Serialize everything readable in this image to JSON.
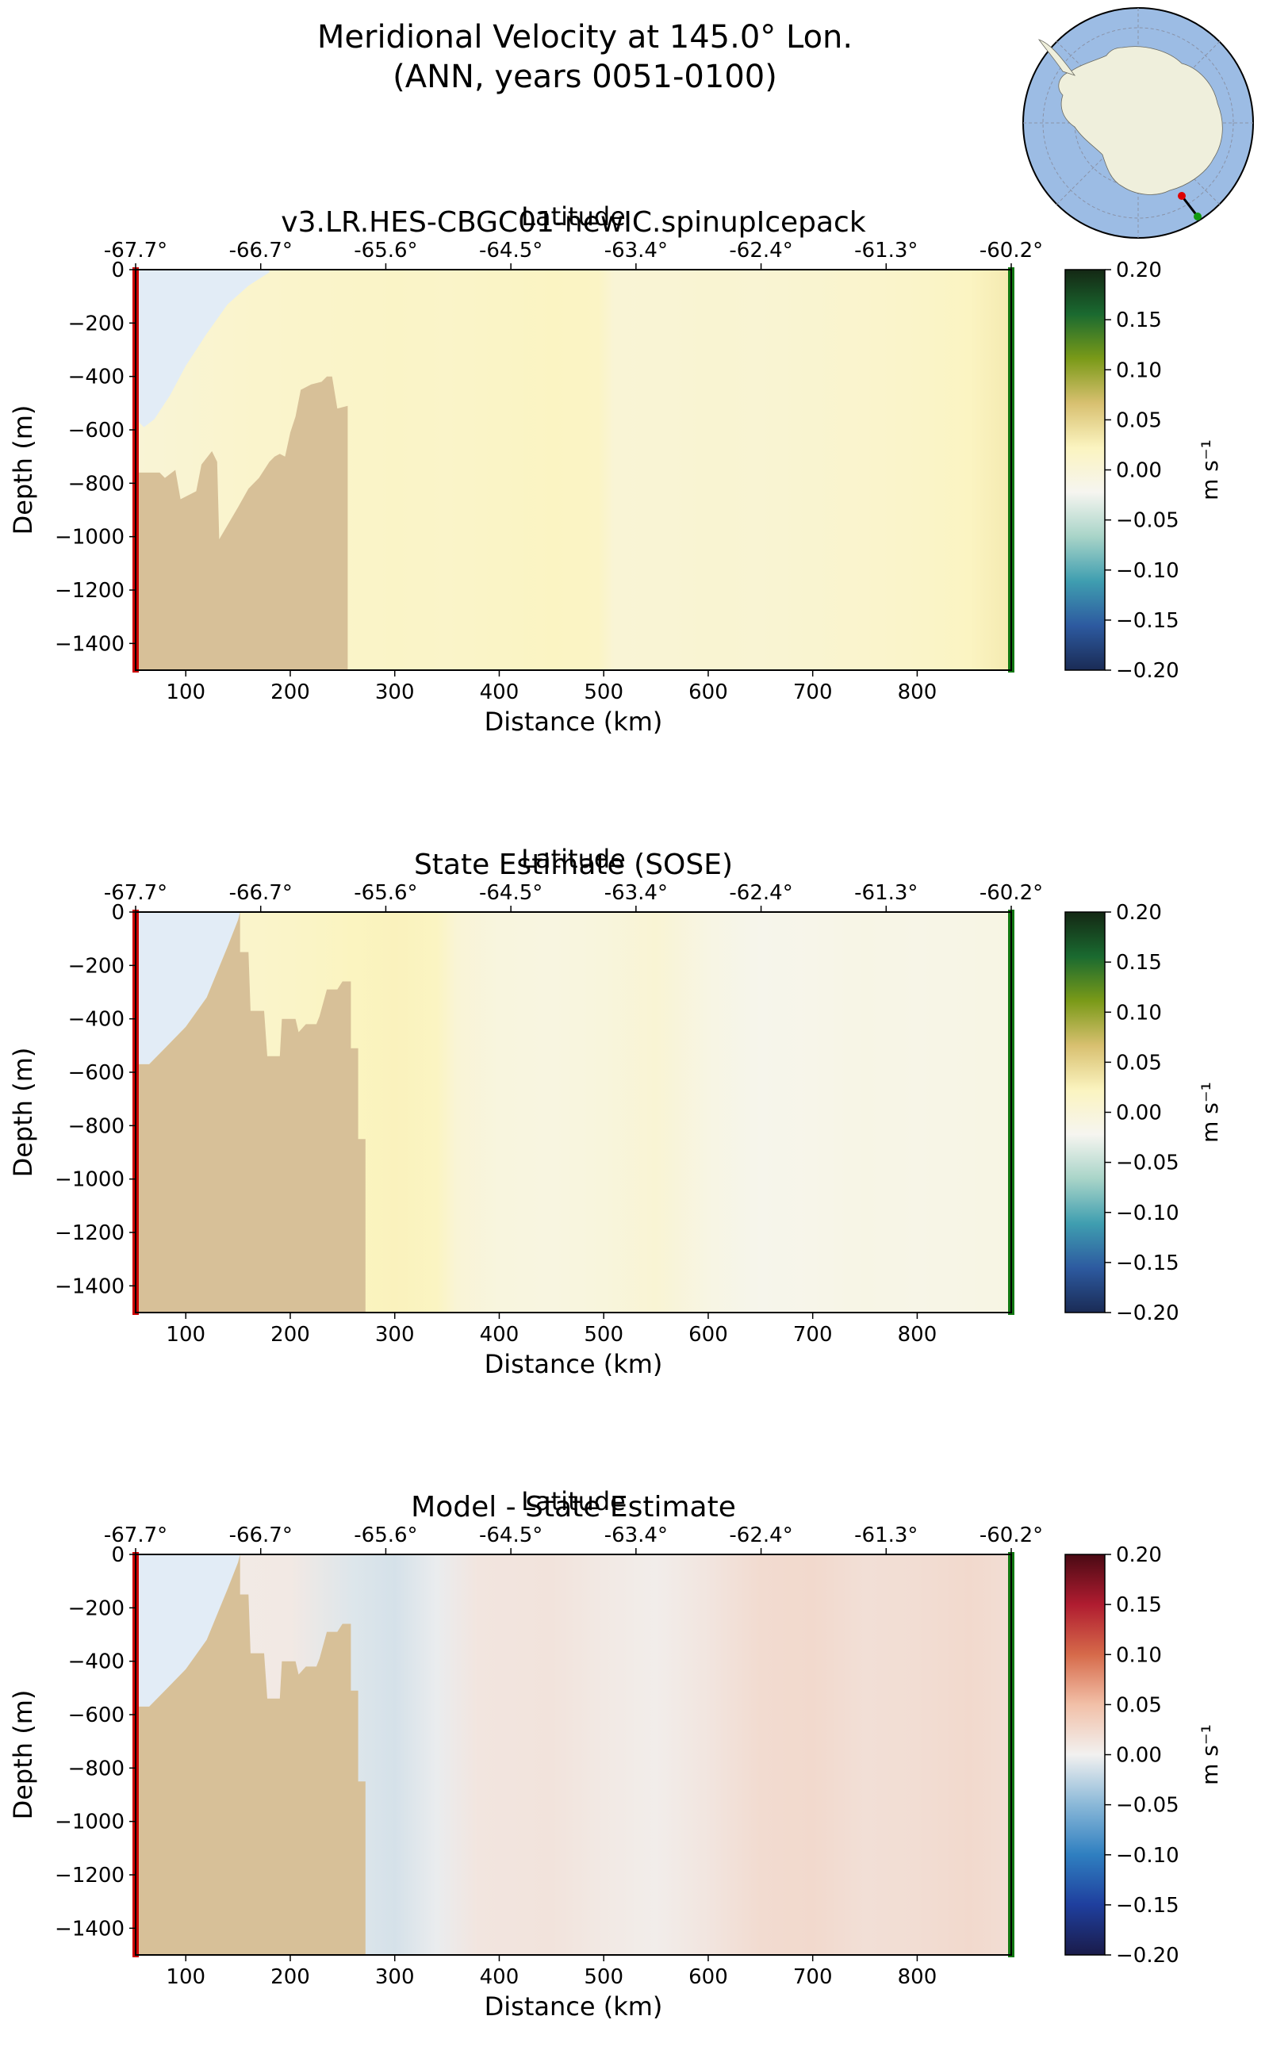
{
  "figure": {
    "title_line1": "Meridional Velocity at 145.0° Lon.",
    "title_line2": "(ANN, years 0051-0100)"
  },
  "inset_map": {
    "description_icon": "antarctica-polar-map-icon",
    "land_color": "#efefdc",
    "ocean_color": "#9cbce4",
    "transect_start_color": "#dd0000",
    "transect_end_color": "#119911"
  },
  "chart_data": [
    {
      "type": "heatmap",
      "title": "v3.LR.HES-CBGC01-newIC.spinupIcepack",
      "xlabel": "Distance (km)",
      "ylabel": "Depth (m)",
      "top_axis_label": "Latitude",
      "top_tick_labels": [
        "-67.7°",
        "-66.7°",
        "-65.6°",
        "-64.5°",
        "-63.4°",
        "-62.4°",
        "-61.3°",
        "-60.2°"
      ],
      "xticks": [
        100,
        200,
        300,
        400,
        500,
        600,
        700,
        800
      ],
      "yticks": [
        0,
        -200,
        -400,
        -600,
        -800,
        -1000,
        -1200,
        -1400
      ],
      "xlim": [
        52,
        890
      ],
      "ylim": [
        -1500,
        0
      ],
      "colorbar": {
        "label": "m s⁻¹",
        "ticks": [
          "0.20",
          "0.15",
          "0.10",
          "0.05",
          "0.00",
          "−0.05",
          "−0.10",
          "−0.15",
          "−0.20"
        ],
        "range": [
          -0.2,
          0.2
        ],
        "colors": [
          "#1a2b55",
          "#2d5aa0",
          "#3f9eb0",
          "#a8d4c8",
          "#f6f5f0",
          "#fbf4c0",
          "#d8c070",
          "#7a9a18",
          "#1a6a30",
          "#142814"
        ]
      },
      "columns": [
        {
          "x": 55,
          "v": 0.003
        },
        {
          "x": 100,
          "v": 0.006
        },
        {
          "x": 150,
          "v": 0.01
        },
        {
          "x": 200,
          "v": 0.012
        },
        {
          "x": 250,
          "v": 0.014
        },
        {
          "x": 300,
          "v": 0.016
        },
        {
          "x": 350,
          "v": 0.014
        },
        {
          "x": 400,
          "v": 0.017
        },
        {
          "x": 450,
          "v": 0.019
        },
        {
          "x": 495,
          "v": 0.018
        },
        {
          "x": 510,
          "v": 0.003
        },
        {
          "x": 560,
          "v": 0.004
        },
        {
          "x": 600,
          "v": 0.006
        },
        {
          "x": 650,
          "v": 0.005
        },
        {
          "x": 700,
          "v": 0.007
        },
        {
          "x": 750,
          "v": 0.01
        },
        {
          "x": 800,
          "v": 0.014
        },
        {
          "x": 850,
          "v": 0.02
        },
        {
          "x": 885,
          "v": 0.03
        }
      ],
      "land": [
        [
          52,
          -1500
        ],
        [
          52,
          -760
        ],
        [
          75,
          -760
        ],
        [
          80,
          -780
        ],
        [
          90,
          -750
        ],
        [
          95,
          -860
        ],
        [
          110,
          -830
        ],
        [
          115,
          -730
        ],
        [
          125,
          -680
        ],
        [
          130,
          -720
        ],
        [
          132,
          -1010
        ],
        [
          150,
          -890
        ],
        [
          160,
          -820
        ],
        [
          170,
          -780
        ],
        [
          180,
          -720
        ],
        [
          185,
          -700
        ],
        [
          190,
          -690
        ],
        [
          195,
          -700
        ],
        [
          200,
          -610
        ],
        [
          205,
          -550
        ],
        [
          210,
          -450
        ],
        [
          220,
          -430
        ],
        [
          230,
          -420
        ],
        [
          235,
          -400
        ],
        [
          240,
          -400
        ],
        [
          245,
          -520
        ],
        [
          255,
          -510
        ],
        [
          255,
          -1500
        ]
      ],
      "shelf": [
        [
          52,
          0
        ],
        [
          52,
          -560
        ],
        [
          60,
          -590
        ],
        [
          70,
          -560
        ],
        [
          85,
          -470
        ],
        [
          100,
          -360
        ],
        [
          120,
          -240
        ],
        [
          140,
          -130
        ],
        [
          160,
          -60
        ],
        [
          180,
          -10
        ],
        [
          180,
          0
        ]
      ],
      "land_color": "#d7c098",
      "shelf_color": "#e2ecf6"
    },
    {
      "type": "heatmap",
      "title": "State Estimate (SOSE)",
      "xlabel": "Distance (km)",
      "ylabel": "Depth (m)",
      "top_axis_label": "Latitude",
      "top_tick_labels": [
        "-67.7°",
        "-66.7°",
        "-65.6°",
        "-64.5°",
        "-63.4°",
        "-62.4°",
        "-61.3°",
        "-60.2°"
      ],
      "xticks": [
        100,
        200,
        300,
        400,
        500,
        600,
        700,
        800
      ],
      "yticks": [
        0,
        -200,
        -400,
        -600,
        -800,
        -1000,
        -1200,
        -1400
      ],
      "xlim": [
        52,
        890
      ],
      "ylim": [
        -1500,
        0
      ],
      "colorbar": {
        "label": "m s⁻¹",
        "ticks": [
          "0.20",
          "0.15",
          "0.10",
          "0.05",
          "0.00",
          "−0.05",
          "−0.10",
          "−0.15",
          "−0.20"
        ],
        "range": [
          -0.2,
          0.2
        ],
        "colors": [
          "#1a2b55",
          "#2d5aa0",
          "#3f9eb0",
          "#a8d4c8",
          "#f6f5f0",
          "#fbf4c0",
          "#d8c070",
          "#7a9a18",
          "#1a6a30",
          "#142814"
        ]
      },
      "columns": [
        {
          "x": 55,
          "v": 0.01
        },
        {
          "x": 150,
          "v": 0.012
        },
        {
          "x": 200,
          "v": 0.015
        },
        {
          "x": 260,
          "v": 0.022
        },
        {
          "x": 300,
          "v": 0.024
        },
        {
          "x": 340,
          "v": 0.02
        },
        {
          "x": 360,
          "v": 0.002
        },
        {
          "x": 400,
          "v": -0.006
        },
        {
          "x": 450,
          "v": -0.007
        },
        {
          "x": 500,
          "v": -0.004
        },
        {
          "x": 550,
          "v": 0.004
        },
        {
          "x": 600,
          "v": -0.01
        },
        {
          "x": 650,
          "v": -0.018
        },
        {
          "x": 700,
          "v": -0.016
        },
        {
          "x": 750,
          "v": -0.012
        },
        {
          "x": 800,
          "v": -0.014
        },
        {
          "x": 850,
          "v": -0.012
        },
        {
          "x": 885,
          "v": -0.01
        }
      ],
      "land": [
        [
          52,
          -1500
        ],
        [
          52,
          -570
        ],
        [
          65,
          -570
        ],
        [
          80,
          -510
        ],
        [
          100,
          -430
        ],
        [
          120,
          -320
        ],
        [
          140,
          -130
        ],
        [
          150,
          -30
        ],
        [
          152,
          0
        ],
        [
          152,
          -150
        ],
        [
          160,
          -150
        ],
        [
          162,
          -370
        ],
        [
          175,
          -370
        ],
        [
          178,
          -540
        ],
        [
          190,
          -540
        ],
        [
          192,
          -400
        ],
        [
          205,
          -400
        ],
        [
          208,
          -450
        ],
        [
          215,
          -420
        ],
        [
          225,
          -420
        ],
        [
          228,
          -390
        ],
        [
          235,
          -290
        ],
        [
          245,
          -290
        ],
        [
          250,
          -260
        ],
        [
          258,
          -260
        ],
        [
          258,
          -510
        ],
        [
          265,
          -510
        ],
        [
          265,
          -850
        ],
        [
          272,
          -850
        ],
        [
          272,
          -1500
        ]
      ],
      "shelf": [
        [
          52,
          0
        ],
        [
          52,
          -570
        ],
        [
          65,
          -570
        ],
        [
          80,
          -510
        ],
        [
          100,
          -430
        ],
        [
          120,
          -320
        ],
        [
          140,
          -130
        ],
        [
          150,
          -30
        ],
        [
          152,
          0
        ]
      ],
      "land_color": "#d7c098",
      "shelf_color": "#e2ecf6"
    },
    {
      "type": "heatmap",
      "title": "Model - State Estimate",
      "xlabel": "Distance (km)",
      "ylabel": "Depth (m)",
      "top_axis_label": "Latitude",
      "top_tick_labels": [
        "-67.7°",
        "-66.7°",
        "-65.6°",
        "-64.5°",
        "-63.4°",
        "-62.4°",
        "-61.3°",
        "-60.2°"
      ],
      "xticks": [
        100,
        200,
        300,
        400,
        500,
        600,
        700,
        800
      ],
      "yticks": [
        0,
        -200,
        -400,
        -600,
        -800,
        -1000,
        -1200,
        -1400
      ],
      "xlim": [
        52,
        890
      ],
      "ylim": [
        -1500,
        0
      ],
      "colorbar": {
        "label": "m s⁻¹",
        "ticks": [
          "0.20",
          "0.15",
          "0.10",
          "0.05",
          "0.00",
          "−0.05",
          "−0.10",
          "−0.15",
          "−0.20"
        ],
        "range": [
          -0.2,
          0.2
        ],
        "colors": [
          "#1a1b4a",
          "#1f3f9e",
          "#2f7fc0",
          "#8ab8d8",
          "#f2f1f0",
          "#f2c0a8",
          "#d66a4a",
          "#b01c30",
          "#4a0a14"
        ]
      },
      "columns": [
        {
          "x": 55,
          "v": 0.006
        },
        {
          "x": 200,
          "v": 0.008
        },
        {
          "x": 260,
          "v": -0.01
        },
        {
          "x": 300,
          "v": -0.014
        },
        {
          "x": 340,
          "v": -0.004
        },
        {
          "x": 380,
          "v": 0.012
        },
        {
          "x": 450,
          "v": 0.014
        },
        {
          "x": 500,
          "v": 0.008
        },
        {
          "x": 550,
          "v": 0.004
        },
        {
          "x": 600,
          "v": 0.012
        },
        {
          "x": 650,
          "v": 0.022
        },
        {
          "x": 700,
          "v": 0.024
        },
        {
          "x": 750,
          "v": 0.018
        },
        {
          "x": 800,
          "v": 0.02
        },
        {
          "x": 850,
          "v": 0.024
        },
        {
          "x": 885,
          "v": 0.02
        }
      ],
      "land": [
        [
          52,
          -1500
        ],
        [
          52,
          -570
        ],
        [
          65,
          -570
        ],
        [
          80,
          -510
        ],
        [
          100,
          -430
        ],
        [
          120,
          -320
        ],
        [
          140,
          -130
        ],
        [
          150,
          -30
        ],
        [
          152,
          0
        ],
        [
          152,
          -150
        ],
        [
          160,
          -150
        ],
        [
          162,
          -370
        ],
        [
          175,
          -370
        ],
        [
          178,
          -540
        ],
        [
          190,
          -540
        ],
        [
          192,
          -400
        ],
        [
          205,
          -400
        ],
        [
          208,
          -450
        ],
        [
          215,
          -420
        ],
        [
          225,
          -420
        ],
        [
          228,
          -390
        ],
        [
          235,
          -290
        ],
        [
          245,
          -290
        ],
        [
          250,
          -260
        ],
        [
          258,
          -260
        ],
        [
          258,
          -510
        ],
        [
          265,
          -510
        ],
        [
          265,
          -850
        ],
        [
          272,
          -850
        ],
        [
          272,
          -1500
        ]
      ],
      "shelf": [
        [
          52,
          0
        ],
        [
          52,
          -570
        ],
        [
          65,
          -570
        ],
        [
          80,
          -510
        ],
        [
          100,
          -430
        ],
        [
          120,
          -320
        ],
        [
          140,
          -130
        ],
        [
          150,
          -30
        ],
        [
          152,
          0
        ]
      ],
      "land_color": "#d7c098",
      "shelf_color": "#e2ecf6"
    }
  ]
}
